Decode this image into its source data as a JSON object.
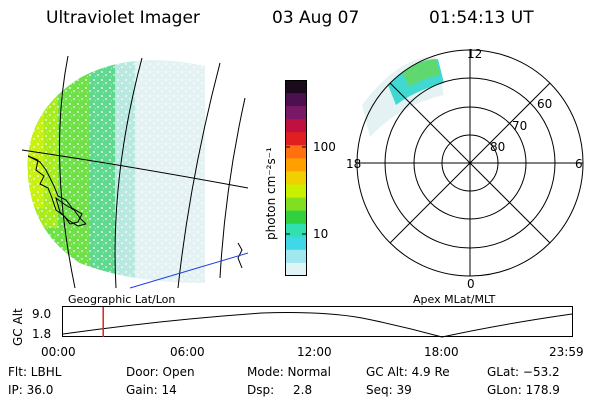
{
  "header": {
    "instrument": "Ultraviolet Imager",
    "date": "03 Aug 07",
    "time": "01:54:13 UT"
  },
  "colorbar": {
    "label": "photon cm⁻²s⁻¹",
    "ticks": [
      "100",
      "10"
    ],
    "colors": [
      "#1a0a1a",
      "#4a1050",
      "#7a1868",
      "#c01040",
      "#e02020",
      "#ff7010",
      "#ffa000",
      "#f0d000",
      "#c8f000",
      "#80e020",
      "#30d040",
      "#30e0b0",
      "#40d8e8",
      "#a0e8f0",
      "#e0f4f8"
    ]
  },
  "geo_panel": {
    "caption": "Geographic Lat/Lon"
  },
  "polar_panel": {
    "caption": "Apex MLat/MLT",
    "mlt_labels": [
      "12",
      "18",
      "6",
      "0"
    ],
    "lat_labels": [
      "60",
      "70",
      "80"
    ]
  },
  "timeline": {
    "y_label": "GC Alt",
    "y_max": "9.0",
    "y_min": "1.8",
    "x_ticks": [
      "00:00",
      "06:00",
      "12:00",
      "18:00",
      "23:59"
    ],
    "marker_time": "01:54",
    "marker_fraction": 0.079
  },
  "status": {
    "flt": "Flt: LBHL",
    "door": "Door: Open",
    "mode": "Mode: Normal",
    "gc_alt": "GC Alt: 4.9 Re",
    "glat": "GLat: −53.2",
    "ip": "IP: 36.0",
    "gain": "Gain: 14",
    "dsp_label": "Dsp:",
    "dsp_value": "2.8",
    "seq": "Seq: 39",
    "glon": "GLon: 178.9"
  }
}
